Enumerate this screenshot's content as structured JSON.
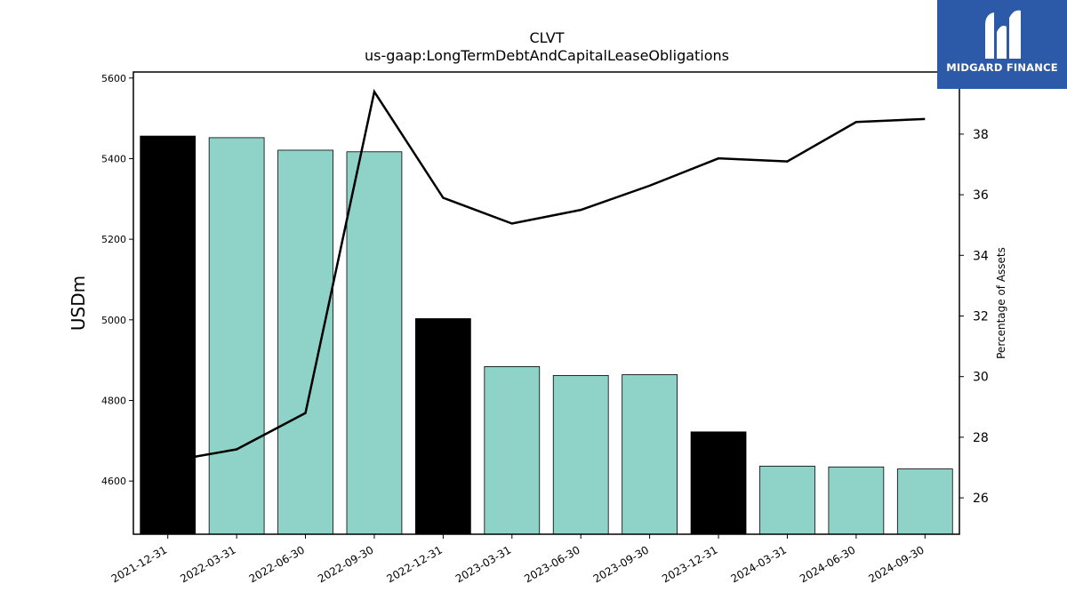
{
  "chart_data": {
    "type": "bar",
    "title": "CLVT",
    "subtitle": "us-gaap:LongTermDebtAndCapitalLeaseObligations",
    "ylabel": "USDm",
    "y2label": "Percentage of Assets",
    "categories": [
      "2021-12-31",
      "2022-03-31",
      "2022-06-30",
      "2022-09-30",
      "2022-12-31",
      "2023-03-31",
      "2023-06-30",
      "2023-09-30",
      "2023-12-31",
      "2024-03-31",
      "2024-06-30",
      "2024-09-30"
    ],
    "values": [
      5456,
      5452,
      5421,
      5417,
      5003,
      4884,
      4862,
      4864,
      4722,
      4637,
      4635,
      4630
    ],
    "bar_colors": [
      "#000000",
      "#8fd3c8",
      "#8fd3c8",
      "#8fd3c8",
      "#000000",
      "#8fd3c8",
      "#8fd3c8",
      "#8fd3c8",
      "#000000",
      "#8fd3c8",
      "#8fd3c8",
      "#8fd3c8"
    ],
    "line_values": [
      27.2,
      27.6,
      28.8,
      39.4,
      35.9,
      35.05,
      35.5,
      36.3,
      37.2,
      37.1,
      38.4,
      38.5
    ],
    "ylim": [
      4468,
      5615
    ],
    "y2lim": [
      24.8,
      40.05
    ],
    "yticks": [
      4600,
      4800,
      5000,
      5200,
      5400,
      5600
    ],
    "y2ticks": [
      26,
      28,
      30,
      32,
      34,
      36,
      38
    ],
    "grid": false
  },
  "logo": {
    "text": "MIDGARD FINANCE",
    "color": "#2d5aa8"
  }
}
